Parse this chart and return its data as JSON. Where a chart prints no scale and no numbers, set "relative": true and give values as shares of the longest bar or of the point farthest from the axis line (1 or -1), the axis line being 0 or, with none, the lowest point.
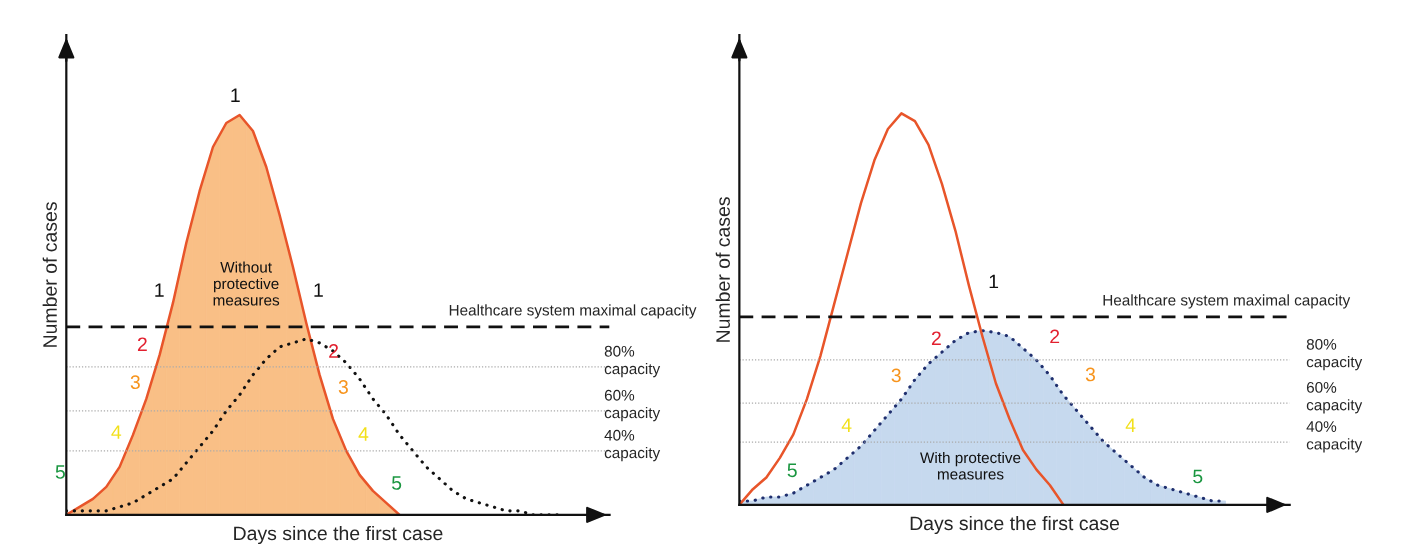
{
  "chart_data": [
    {
      "type": "area",
      "relative": true,
      "xlabel": "Days since the first case",
      "ylabel": "Number of cases",
      "tick_labels": false,
      "legend": false,
      "categories": [
        null,
        null,
        null,
        null,
        null,
        null,
        null,
        null,
        null,
        null,
        null,
        null,
        null,
        null,
        null,
        null,
        null,
        null,
        null,
        null,
        null,
        null,
        null,
        null,
        null,
        null,
        null,
        null,
        null,
        null,
        null,
        null,
        null,
        null,
        null,
        null,
        null,
        null,
        null,
        null,
        null
      ],
      "series": [
        {
          "colors": [
            "#f9bf86",
            "#f9bf86",
            "#f9bf86",
            "#f9bf86",
            "#f9bf86",
            "#f9bf86",
            "#f9bf86",
            "#f9bf86",
            "#f9bf86",
            "#f9bf86",
            "#f9bf86",
            "#f9bf86",
            "#f9bf86",
            "#f9bf86",
            "#f9bf86",
            "#f9bf86",
            "#f9bf86",
            "#f9bf86",
            "#f9bf86",
            "#f9bf86",
            "#f9bf86",
            "#f9bf86",
            "#f9bf86",
            "#f9bf86",
            "#f9bf86",
            "#f9bf86",
            null,
            null,
            null,
            null,
            null,
            null,
            null,
            null,
            null,
            null,
            null,
            null,
            null,
            null,
            null
          ],
          "color": "#e8552a",
          "line_style": "solid",
          "values": [
            0,
            0.02,
            0.04,
            0.07,
            0.12,
            0.2,
            0.29,
            0.4,
            0.53,
            0.68,
            0.81,
            0.92,
            0.98,
            1.0,
            0.96,
            0.87,
            0.75,
            0.62,
            0.48,
            0.35,
            0.24,
            0.16,
            0.1,
            0.06,
            0.03,
            0,
            null,
            null,
            null,
            null,
            null,
            null,
            null,
            null,
            null,
            null,
            null,
            null,
            null,
            null,
            null
          ]
        },
        {
          "type": "line",
          "color": "#111111",
          "line_style": "dotted",
          "values": [
            0.01,
            0.01,
            0.01,
            0.01,
            0.02,
            0.03,
            0.05,
            0.07,
            0.09,
            0.13,
            0.17,
            0.21,
            0.26,
            0.3,
            0.35,
            0.39,
            0.42,
            0.43,
            0.44,
            0.43,
            0.41,
            0.38,
            0.34,
            0.29,
            0.25,
            0.2,
            0.16,
            0.12,
            0.09,
            0.06,
            0.04,
            0.03,
            0.02,
            0.01,
            0.01,
            0,
            0,
            0,
            null,
            null,
            null
          ]
        }
      ],
      "ref_lines": [
        {
          "axis": "y",
          "value": 0.47,
          "label": "Healthcare system maximal capacity",
          "color": "#111111",
          "line_style": "dashed"
        },
        {
          "axis": "y",
          "value": 0.37,
          "label": "80%\ncapacity",
          "color": "#aaaaaa",
          "line_style": "dotted"
        },
        {
          "axis": "y",
          "value": 0.26,
          "label": "60%\ncapacity",
          "color": "#aaaaaa",
          "line_style": "dotted"
        },
        {
          "axis": "y",
          "value": 0.16,
          "label": "40%\ncapacity",
          "color": "#aaaaaa",
          "line_style": "dotted"
        }
      ],
      "annotations": [
        "1",
        "1",
        "1",
        "2",
        "2",
        "3",
        "3",
        "4",
        "4",
        "5",
        "5",
        "Without\nprotective\nmeasures"
      ]
    },
    {
      "type": "area",
      "relative": true,
      "xlabel": "Days since the first case",
      "ylabel": "Number of cases",
      "tick_labels": false,
      "legend": false,
      "categories": [
        null,
        null,
        null,
        null,
        null,
        null,
        null,
        null,
        null,
        null,
        null,
        null,
        null,
        null,
        null,
        null,
        null,
        null,
        null,
        null,
        null,
        null,
        null,
        null,
        null,
        null,
        null,
        null,
        null,
        null,
        null,
        null,
        null,
        null,
        null,
        null,
        null,
        null,
        null,
        null,
        null
      ],
      "series": [
        {
          "colors": [
            "#c6d9ee",
            "#c6d9ee",
            "#c6d9ee",
            "#c6d9ee",
            "#c6d9ee",
            "#c6d9ee",
            "#c6d9ee",
            "#c6d9ee",
            "#c6d9ee",
            "#c6d9ee",
            "#c6d9ee",
            "#c6d9ee",
            "#c6d9ee",
            "#c6d9ee",
            "#c6d9ee",
            "#c6d9ee",
            "#c6d9ee",
            "#c6d9ee",
            "#c6d9ee",
            "#c6d9ee",
            "#c6d9ee",
            "#c6d9ee",
            "#c6d9ee",
            "#c6d9ee",
            "#c6d9ee",
            "#c6d9ee",
            "#c6d9ee",
            "#c6d9ee",
            "#c6d9ee",
            "#c6d9ee",
            "#c6d9ee",
            "#c6d9ee",
            "#c6d9ee",
            "#c6d9ee",
            "#c6d9ee",
            "#c6d9ee",
            "#c6d9ee",
            null,
            null,
            null,
            null
          ],
          "color": "#1f2f6e",
          "line_style": "dotted",
          "values": [
            0.01,
            0.01,
            0.02,
            0.02,
            0.03,
            0.05,
            0.07,
            0.09,
            0.12,
            0.15,
            0.19,
            0.23,
            0.27,
            0.32,
            0.36,
            0.39,
            0.42,
            0.44,
            0.445,
            0.44,
            0.43,
            0.4,
            0.37,
            0.33,
            0.28,
            0.24,
            0.2,
            0.16,
            0.13,
            0.1,
            0.07,
            0.05,
            0.04,
            0.03,
            0.02,
            0.01,
            0.01,
            null,
            null,
            null,
            null
          ]
        },
        {
          "type": "line",
          "color": "#e8552a",
          "line_style": "solid",
          "values": [
            0,
            0.04,
            0.07,
            0.12,
            0.18,
            0.27,
            0.38,
            0.51,
            0.64,
            0.77,
            0.88,
            0.96,
            1.0,
            0.98,
            0.92,
            0.82,
            0.7,
            0.56,
            0.43,
            0.31,
            0.22,
            0.14,
            0.09,
            0.05,
            0,
            null,
            null,
            null,
            null,
            null,
            null,
            null,
            null,
            null,
            null,
            null,
            null,
            null,
            null,
            null,
            null
          ]
        }
      ],
      "ref_lines": [
        {
          "axis": "y",
          "value": 0.48,
          "label": "Healthcare system maximal capacity",
          "color": "#111111",
          "line_style": "dashed"
        },
        {
          "axis": "y",
          "value": 0.37,
          "label": "80%\ncapacity",
          "color": "#aaaaaa",
          "line_style": "dotted"
        },
        {
          "axis": "y",
          "value": 0.26,
          "label": "60%\ncapacity",
          "color": "#aaaaaa",
          "line_style": "dotted"
        },
        {
          "axis": "y",
          "value": 0.16,
          "label": "40%\ncapacity",
          "color": "#aaaaaa",
          "line_style": "dotted"
        }
      ],
      "annotations": [
        "1",
        "2",
        "2",
        "3",
        "3",
        "4",
        "4",
        "5",
        "5",
        "With protective\nmeasures"
      ]
    }
  ]
}
